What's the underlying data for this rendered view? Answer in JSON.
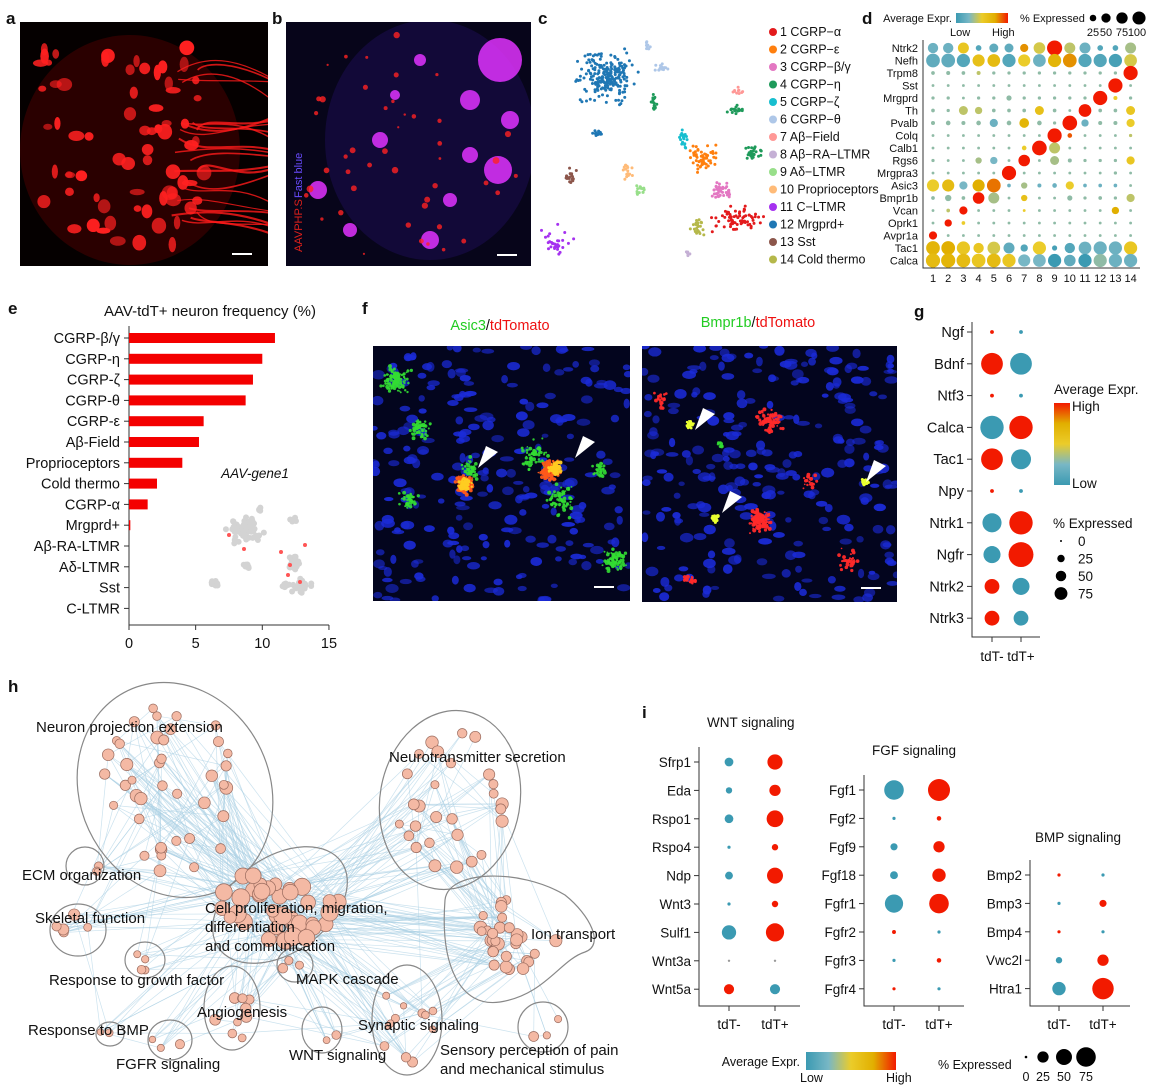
{
  "panel_labels": {
    "a": "a",
    "b": "b",
    "c": "c",
    "d": "d",
    "e": "e",
    "f": "f",
    "g": "g",
    "h": "h",
    "i": "i"
  },
  "panel_b": {
    "stain_1": "AAVPHP.S",
    "stain_2": "Fast blue"
  },
  "panel_f": {
    "left_title_gene": "Asic3",
    "left_title_sep": "/",
    "left_title_reporter": "tdTomato",
    "right_title_gene": "Bmpr1b",
    "right_title_sep": "/",
    "right_title_reporter": "tdTomato"
  },
  "colors": {
    "low": "#3B9AB2",
    "mid": "#EBCC2A",
    "high": "#F21A00",
    "bar": "#F40000",
    "node": "#F4B9A4",
    "edge": "#A9CFE3"
  },
  "chart_data": [
    {
      "id": "c",
      "type": "scatter",
      "title": "UMAP clusters",
      "legend": [
        {
          "label": "1 CGRP−α",
          "color": "#E31A1C"
        },
        {
          "label": "2 CGRP−ε",
          "color": "#FF7F0E"
        },
        {
          "label": "3 CGRP−β/γ",
          "color": "#E377C2"
        },
        {
          "label": "4 CGRP−η",
          "color": "#1E9A5A"
        },
        {
          "label": "5 CGRP−ζ",
          "color": "#17BECF"
        },
        {
          "label": "6 CGRP−θ",
          "color": "#AEC7E8"
        },
        {
          "label": "7 Aβ−Field",
          "color": "#FF9896"
        },
        {
          "label": "8 Aβ−RA−LTMR",
          "color": "#C5B0D5"
        },
        {
          "label": "9 Aδ−LTMR",
          "color": "#98DF8A"
        },
        {
          "label": "10 Proprioceptors",
          "color": "#FFBB78"
        },
        {
          "label": "11 C−LTMR",
          "color": "#A531F0"
        },
        {
          "label": "12 Mrgprd+",
          "color": "#1F77B4"
        },
        {
          "label": "13 Sst",
          "color": "#8C564B"
        },
        {
          "label": "14 Cold thermo",
          "color": "#B5B84A"
        }
      ]
    },
    {
      "id": "d",
      "type": "dotplot",
      "legend_expr": "Average Expr.",
      "legend_low": "Low",
      "legend_high": "High",
      "legend_pct": "% Expressed",
      "pct_levels": [
        25,
        50,
        75,
        100
      ],
      "pct_labels": [
        "25",
        "50",
        "75",
        "100"
      ],
      "clusters": [
        "1",
        "2",
        "3",
        "4",
        "5",
        "6",
        "7",
        "8",
        "9",
        "10",
        "11",
        "12",
        "13",
        "14"
      ],
      "genes": [
        "Ntrk2",
        "Nefh",
        "Trpm8",
        "Sst",
        "Mrgprd",
        "Th",
        "Pvalb",
        "Colq",
        "Calb1",
        "Rgs6",
        "Mrgpra3",
        "Asic3",
        "Bmpr1b",
        "Vcan",
        "Oprk1",
        "Avpr1a",
        "Tac1",
        "Calca"
      ],
      "expr": [
        [
          0.2,
          0.2,
          0.55,
          0.1,
          0.15,
          0.15,
          0.8,
          0.45,
          1,
          0.4,
          0.2,
          0.1,
          0.1,
          0.35
        ],
        [
          0.15,
          0.15,
          0.1,
          0.6,
          0.65,
          0.1,
          0.5,
          0.2,
          0.7,
          0.8,
          0.1,
          0.1,
          0.05,
          0.45
        ],
        [
          0.3,
          0.3,
          0.3,
          0.4,
          0.3,
          0.3,
          0.3,
          0.3,
          0.3,
          0.3,
          0.3,
          0.3,
          0.3,
          1
        ],
        [
          0.3,
          0.3,
          0.3,
          0.3,
          0.3,
          0.3,
          0.3,
          0.3,
          0.3,
          0.3,
          0.3,
          0.3,
          1,
          0.3
        ],
        [
          0.3,
          0.3,
          0.3,
          0.3,
          0.3,
          0.3,
          0.3,
          0.3,
          0.3,
          0.3,
          0.3,
          1,
          0.5,
          0.3
        ],
        [
          0.3,
          0.3,
          0.4,
          0.4,
          0.3,
          0.3,
          0.3,
          0.6,
          0.3,
          0.3,
          1,
          0.3,
          0.3,
          0.55
        ],
        [
          0.3,
          0.3,
          0.3,
          0.3,
          0.2,
          0.3,
          0.7,
          0.3,
          0.3,
          1,
          0.2,
          0.3,
          0.3,
          0.5
        ],
        [
          0.3,
          0.3,
          0.3,
          0.3,
          0.3,
          0.3,
          0.3,
          0.3,
          1,
          0.9,
          0.3,
          0.3,
          0.3,
          0.4
        ],
        [
          0.3,
          0.3,
          0.3,
          0.3,
          0.3,
          0.3,
          0.5,
          1,
          0.4,
          0.3,
          0.3,
          0.3,
          0.3,
          0.3
        ],
        [
          0.3,
          0.3,
          0.3,
          0.35,
          0.25,
          0.3,
          1,
          0.3,
          0.35,
          0.3,
          0.3,
          0.3,
          0.3,
          0.55
        ],
        [
          0.3,
          0.3,
          0.3,
          0.3,
          0.3,
          1,
          0.3,
          0.3,
          0.3,
          0.3,
          0.3,
          0.3,
          0.3,
          0.3
        ],
        [
          0.5,
          0.65,
          0.25,
          0.75,
          0.85,
          0.2,
          0.35,
          0.2,
          0.2,
          0.5,
          0.2,
          0.2,
          0.2,
          0.3
        ],
        [
          0.3,
          0.3,
          0.3,
          1,
          0.35,
          0.3,
          0.6,
          0.3,
          0.3,
          0.3,
          0.3,
          0.3,
          0.3,
          0.4
        ],
        [
          0.3,
          0.4,
          1,
          0.3,
          0.3,
          0.3,
          0.5,
          0.3,
          0.3,
          0.3,
          0.3,
          0.3,
          0.75,
          0.3
        ],
        [
          0.3,
          1,
          0.5,
          0.3,
          0.3,
          0.3,
          0.3,
          0.3,
          0.3,
          0.3,
          0.3,
          0.3,
          0.3,
          0.3
        ],
        [
          1,
          0.3,
          0.3,
          0.3,
          0.3,
          0.3,
          0.3,
          0.3,
          0.3,
          0.3,
          0.3,
          0.3,
          0.3,
          0.3
        ],
        [
          0.7,
          0.75,
          0.55,
          0.55,
          0.45,
          0.15,
          0.1,
          0.5,
          0.05,
          0.1,
          0.2,
          0.2,
          0.2,
          0.55
        ],
        [
          0.65,
          0.7,
          0.65,
          0.55,
          0.65,
          0.55,
          0.25,
          0.25,
          0,
          0.15,
          0,
          0.3,
          0.2,
          0.2
        ]
      ],
      "pct": [
        [
          40,
          40,
          45,
          12,
          30,
          30,
          25,
          50,
          85,
          45,
          45,
          12,
          12,
          45
        ],
        [
          70,
          70,
          65,
          55,
          60,
          65,
          55,
          60,
          65,
          70,
          65,
          65,
          65,
          60
        ],
        [
          5,
          6,
          5,
          6,
          4,
          4,
          4,
          4,
          4,
          4,
          4,
          4,
          4,
          75
        ],
        [
          3,
          3,
          3,
          3,
          3,
          3,
          3,
          3,
          3,
          3,
          3,
          3,
          75,
          3
        ],
        [
          4,
          4,
          3,
          4,
          4,
          10,
          4,
          4,
          4,
          4,
          4,
          75,
          6,
          4
        ],
        [
          5,
          4,
          30,
          20,
          5,
          5,
          5,
          30,
          5,
          3,
          60,
          5,
          5,
          30
        ],
        [
          6,
          8,
          6,
          8,
          25,
          8,
          35,
          8,
          4,
          80,
          20,
          6,
          6,
          25
        ],
        [
          3,
          3,
          3,
          3,
          3,
          3,
          3,
          3,
          75,
          8,
          3,
          3,
          3,
          4
        ],
        [
          3,
          3,
          3,
          3,
          3,
          3,
          8,
          80,
          45,
          3,
          3,
          3,
          3,
          3
        ],
        [
          4,
          3,
          3,
          15,
          20,
          3,
          50,
          3,
          30,
          6,
          4,
          4,
          4,
          25
        ],
        [
          3,
          3,
          3,
          3,
          3,
          75,
          3,
          3,
          3,
          3,
          3,
          3,
          4,
          3
        ],
        [
          55,
          55,
          25,
          55,
          70,
          5,
          15,
          6,
          8,
          25,
          5,
          5,
          5,
          3
        ],
        [
          5,
          15,
          5,
          50,
          45,
          3,
          15,
          3,
          3,
          10,
          4,
          5,
          4,
          25
        ],
        [
          3,
          5,
          25,
          3,
          3,
          3,
          3,
          3,
          3,
          3,
          3,
          3,
          20,
          3
        ],
        [
          3,
          20,
          5,
          3,
          3,
          3,
          3,
          3,
          3,
          3,
          3,
          3,
          3,
          3
        ],
        [
          25,
          3,
          3,
          3,
          3,
          3,
          3,
          3,
          3,
          3,
          3,
          3,
          3,
          3
        ],
        [
          70,
          70,
          65,
          40,
          60,
          45,
          20,
          65,
          10,
          40,
          60,
          65,
          65,
          65
        ],
        [
          75,
          75,
          70,
          70,
          70,
          65,
          55,
          60,
          65,
          50,
          65,
          65,
          65,
          65
        ]
      ]
    },
    {
      "id": "e",
      "type": "bar",
      "orientation": "horizontal",
      "title": "AAV-tdT+ neuron frequency (%)",
      "categories": [
        "CGRP-β/γ",
        "CGRP-η",
        "CGRP-ζ",
        "CGRP-θ",
        "CGRP-ε",
        "Aβ-Field",
        "Proprioceptors",
        "Cold thermo",
        "CGRP-α",
        "Mrgprd+",
        "Aβ-RA-LTMR",
        "Aδ-LTMR",
        "Sst",
        "C-LTMR"
      ],
      "values": [
        10.95,
        10.0,
        9.3,
        8.75,
        5.6,
        5.25,
        4.0,
        2.1,
        1.4,
        0.1,
        0,
        0,
        0,
        0
      ],
      "xlim": [
        0,
        15
      ],
      "xticks": [
        0,
        5,
        10,
        15
      ],
      "xtick_labels": [
        "0",
        "5",
        "10",
        "15"
      ],
      "inset_label": "AAV-gene1"
    },
    {
      "id": "g",
      "type": "dotplot",
      "groups": [
        "tdT-",
        "tdT+"
      ],
      "genes": [
        "Ngf",
        "Bdnf",
        "Ntf3",
        "Calca",
        "Tac1",
        "Npy",
        "Ntrk1",
        "Ngfr",
        "Ntrk2",
        "Ntrk3"
      ],
      "expr": [
        [
          1,
          0
        ],
        [
          1,
          0
        ],
        [
          1,
          0
        ],
        [
          0,
          1
        ],
        [
          1,
          0
        ],
        [
          1,
          0
        ],
        [
          0,
          1
        ],
        [
          0,
          1
        ],
        [
          1,
          0
        ],
        [
          1,
          0
        ]
      ],
      "pct": [
        [
          2,
          2
        ],
        [
          65,
          65
        ],
        [
          2,
          2
        ],
        [
          75,
          75
        ],
        [
          65,
          55
        ],
        [
          2,
          2
        ],
        [
          50,
          75
        ],
        [
          40,
          85
        ],
        [
          30,
          40
        ],
        [
          30,
          30
        ]
      ],
      "legend_expr": "Average Expr.",
      "legend_high": "High",
      "legend_low": "Low",
      "legend_pct": "% Expressed",
      "pct_levels": [
        0,
        25,
        50,
        75
      ],
      "pct_labels": [
        "0",
        "25",
        "50",
        "75"
      ]
    },
    {
      "id": "h",
      "type": "network",
      "clusters": [
        {
          "label": "Neuron projection extension"
        },
        {
          "label": "Neurotransmitter secretion"
        },
        {
          "label": "ECM organization"
        },
        {
          "label_lines": [
            "Cell proliferation, migration,",
            "differentiation",
            "and communication"
          ]
        },
        {
          "label": "Skeletal function"
        },
        {
          "label": "Ion transport"
        },
        {
          "label": "Response to growth factor"
        },
        {
          "label": "MAPK cascade"
        },
        {
          "label": "Angiogenesis"
        },
        {
          "label": "Response to BMP"
        },
        {
          "label": "FGFR signaling"
        },
        {
          "label": "WNT signaling"
        },
        {
          "label": "Synaptic signaling"
        },
        {
          "label_lines": [
            "Sensory perception of pain",
            "and mechanical stimulus"
          ]
        }
      ]
    },
    {
      "id": "i",
      "type": "dotplot",
      "groups": [
        "tdT-",
        "tdT+"
      ],
      "panels": [
        {
          "title": "WNT signaling",
          "genes": [
            "Sfrp1",
            "Eda",
            "Rspo1",
            "Rspo4",
            "Ndp",
            "Wnt3",
            "Sulf1",
            "Wnt3a",
            "Wnt5a"
          ],
          "expr": [
            [
              0,
              1
            ],
            [
              0,
              1
            ],
            [
              0,
              1
            ],
            [
              0,
              1
            ],
            [
              0,
              1
            ],
            [
              0,
              1
            ],
            [
              0,
              1
            ],
            [
              null,
              null
            ],
            [
              1,
              0
            ]
          ],
          "pct": [
            [
              15,
              45
            ],
            [
              8,
              25
            ],
            [
              15,
              55
            ],
            [
              2,
              8
            ],
            [
              12,
              50
            ],
            [
              2,
              8
            ],
            [
              40,
              65
            ],
            [
              1,
              1
            ],
            [
              20,
              20
            ]
          ]
        },
        {
          "title": "FGF signaling",
          "genes": [
            "Fgf1",
            "Fgf2",
            "Fgf9",
            "Fgf18",
            "Fgfr1",
            "Fgfr2",
            "Fgfr3",
            "Fgfr4"
          ],
          "expr": [
            [
              0,
              1
            ],
            [
              0,
              1
            ],
            [
              0,
              1
            ],
            [
              0,
              1
            ],
            [
              0,
              1
            ],
            [
              1,
              0
            ],
            [
              0,
              1
            ],
            [
              1,
              0
            ]
          ],
          "pct": [
            [
              75,
              95
            ],
            [
              2,
              4
            ],
            [
              10,
              25
            ],
            [
              12,
              35
            ],
            [
              65,
              75
            ],
            [
              3,
              2
            ],
            [
              2,
              4
            ],
            [
              2,
              2
            ]
          ]
        },
        {
          "title": "BMP signaling",
          "genes": [
            "Bmp2",
            "Bmp3",
            "Bmp4",
            "Vwc2l",
            "Htra1"
          ],
          "expr": [
            [
              1,
              0
            ],
            [
              0,
              1
            ],
            [
              1,
              0
            ],
            [
              0,
              1
            ],
            [
              0,
              1
            ]
          ],
          "pct": [
            [
              2,
              2
            ],
            [
              2,
              10
            ],
            [
              2,
              2
            ],
            [
              8,
              25
            ],
            [
              35,
              90
            ]
          ]
        }
      ],
      "legend_expr": "Average Expr.",
      "legend_low": "Low",
      "legend_high": "High",
      "legend_pct": "% Expressed",
      "pct_levels": [
        0,
        25,
        50,
        75
      ],
      "pct_labels": [
        "0",
        "25",
        "50",
        "75"
      ]
    }
  ]
}
